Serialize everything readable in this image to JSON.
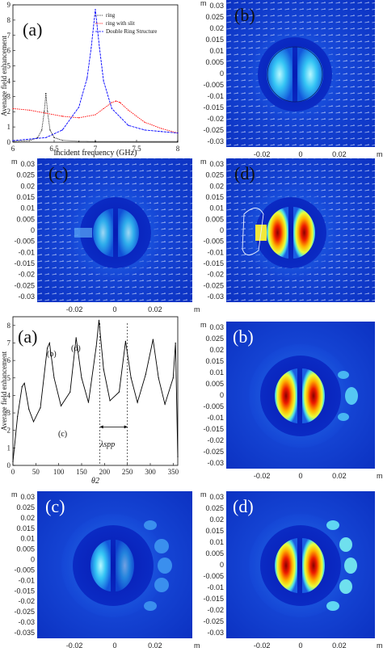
{
  "top_panels": {
    "a": {
      "label": "(a)",
      "xlabel": "incident frequency (GHz)",
      "ylabel": "Avenage field enhancement",
      "legend": [
        "ring",
        "ring with slit",
        "Double Ring Structure"
      ]
    },
    "b": {
      "label": "(b)"
    },
    "c": {
      "label": "(c)"
    },
    "d": {
      "label": "(d)"
    }
  },
  "bottom_panels": {
    "a": {
      "label": "(a)",
      "ylabel": "Average field enhancement",
      "xlabel": "θ2",
      "peak_b": "(b)",
      "peak_d": "(d)",
      "point_c": "(c)",
      "lambda_label": "λspp"
    },
    "b": {
      "label": "(b)"
    },
    "c": {
      "label": "(c)"
    },
    "d": {
      "label": "(d)"
    }
  },
  "map_axes": {
    "unit": "m",
    "y_ticks": [
      "0.03",
      "0.025",
      "0.02",
      "0.015",
      "0.01",
      "0.005",
      "0",
      "-0.005",
      "-0.01",
      "-0.015",
      "-0.02",
      "-0.025",
      "-0.03"
    ],
    "y_ticks_long": [
      "0.03",
      "0.025",
      "0.02",
      "0.015",
      "0.01",
      "0.005",
      "0",
      "-0.005",
      "-0.01",
      "-0.015",
      "-0.02",
      "-0.025",
      "-0.03",
      "-0.035"
    ],
    "x_ticks": [
      "-0.02",
      "0",
      "0.02"
    ]
  },
  "chart_data": [
    {
      "type": "line",
      "title": "",
      "xlabel": "incident frequency (GHz)",
      "ylabel": "Avenage field enhancement",
      "xlim": [
        6,
        8
      ],
      "ylim": [
        0,
        9
      ],
      "x_ticks": [
        6,
        6.5,
        7,
        7.5,
        8
      ],
      "y_ticks": [
        0,
        1,
        2,
        3,
        4,
        5,
        6,
        7,
        8,
        9
      ],
      "legend_position": "top-right",
      "series": [
        {
          "name": "ring",
          "color": "#000000",
          "x": [
            6.0,
            6.2,
            6.3,
            6.35,
            6.38,
            6.4,
            6.42,
            6.45,
            6.5,
            6.6,
            6.8,
            7.0,
            7.5,
            8.0
          ],
          "values": [
            0.05,
            0.1,
            0.3,
            0.8,
            2.0,
            3.2,
            2.0,
            0.8,
            0.3,
            0.12,
            0.06,
            0.05,
            0.05,
            0.05
          ]
        },
        {
          "name": "ring with slit",
          "color": "#ff0000",
          "x": [
            6.0,
            6.2,
            6.4,
            6.6,
            6.8,
            7.0,
            7.1,
            7.2,
            7.25,
            7.3,
            7.4,
            7.6,
            7.8,
            8.0
          ],
          "values": [
            2.2,
            2.1,
            1.9,
            1.7,
            1.6,
            1.8,
            2.2,
            2.6,
            2.7,
            2.6,
            2.1,
            1.3,
            0.9,
            0.6
          ]
        },
        {
          "name": "Double Ring Structure",
          "color": "#0000ff",
          "x": [
            6.0,
            6.4,
            6.6,
            6.8,
            6.9,
            6.95,
            7.0,
            7.05,
            7.1,
            7.2,
            7.4,
            7.6,
            7.8,
            8.0
          ],
          "values": [
            0.1,
            0.3,
            0.8,
            2.3,
            4.2,
            6.2,
            8.7,
            6.2,
            4.0,
            2.2,
            1.1,
            0.8,
            0.7,
            0.6
          ]
        }
      ]
    },
    {
      "type": "line",
      "title": "",
      "xlabel": "θ2",
      "ylabel": "Average field enhancement",
      "xlim": [
        0,
        360
      ],
      "ylim": [
        0,
        8.5
      ],
      "x_ticks": [
        0,
        50,
        100,
        150,
        200,
        250,
        300,
        350
      ],
      "y_ticks": [
        0,
        1,
        2,
        3,
        4,
        5,
        6,
        7,
        8
      ],
      "series": [
        {
          "name": "",
          "color": "#000000",
          "x": [
            0,
            10,
            20,
            25,
            35,
            45,
            60,
            75,
            80,
            90,
            105,
            125,
            138,
            150,
            165,
            182,
            188,
            198,
            212,
            232,
            246,
            258,
            272,
            290,
            306,
            318,
            332,
            350,
            355,
            360
          ],
          "values": [
            0.2,
            2.8,
            4.5,
            4.7,
            3.2,
            2.5,
            3.3,
            6.7,
            7.0,
            5.0,
            3.4,
            4.2,
            7.3,
            5.0,
            3.6,
            6.8,
            8.3,
            5.5,
            3.7,
            4.2,
            7.1,
            5.0,
            3.6,
            5.2,
            7.2,
            5.0,
            3.5,
            5.0,
            7.0,
            0.5
          ]
        }
      ],
      "annotations": [
        "(b)",
        "(d)",
        "(c)",
        "λspp"
      ],
      "vlines": [
        190,
        250
      ]
    }
  ]
}
